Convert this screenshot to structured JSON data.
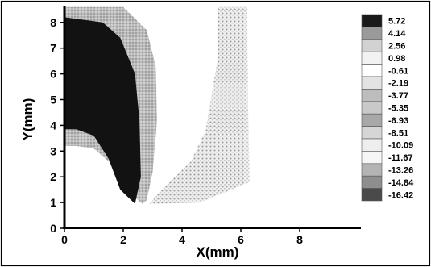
{
  "chart_data": {
    "type": "heatmap",
    "xlabel": "X(mm)",
    "ylabel": "Y(mm)",
    "xlim": [
      0,
      9.5
    ],
    "ylim": [
      0,
      8.6
    ],
    "x_ticks": [
      "0",
      "2",
      "4",
      "6",
      "8"
    ],
    "y_ticks": [
      "0",
      "1",
      "2",
      "3",
      "4",
      "5",
      "6",
      "7",
      "8"
    ],
    "legend": {
      "placement": "right",
      "levels": [
        "5.72",
        "4.14",
        "2.56",
        "0.98",
        "-0.61",
        "-2.19",
        "-3.77",
        "-5.35",
        "-6.93",
        "-8.51",
        "-10.09",
        "-11.67",
        "-13.26",
        "-14.84",
        "-16.42"
      ],
      "colors": [
        "#1a1a1a",
        "#9a9a9a",
        "#d2d2d2",
        "#f2f2f2",
        "#ffffff",
        "#e3e3e3",
        "#bdbdbd",
        "#c9c9c9",
        "#a8a8a8",
        "#d6d6d6",
        "#eeeeee",
        "#f6f6f6",
        "#b4b4b4",
        "#8e8e8e",
        "#4a4a4a"
      ]
    },
    "regions": [
      {
        "level": "4.14",
        "outline": [
          [
            0,
            8.6
          ],
          [
            2.0,
            8.6
          ],
          [
            2.8,
            7.7
          ],
          [
            3.1,
            6.3
          ],
          [
            3.15,
            4.2
          ],
          [
            3.0,
            2.2
          ],
          [
            2.8,
            1.1
          ],
          [
            2.65,
            0.95
          ],
          [
            2.1,
            1.5
          ],
          [
            1.7,
            2.4
          ],
          [
            1.0,
            3.1
          ],
          [
            0.4,
            3.2
          ],
          [
            0,
            3.2
          ]
        ]
      },
      {
        "level": "5.72",
        "outline": [
          [
            0,
            8.2
          ],
          [
            1.3,
            8.0
          ],
          [
            1.9,
            7.4
          ],
          [
            2.4,
            6.0
          ],
          [
            2.55,
            4.2
          ],
          [
            2.6,
            2.0
          ],
          [
            2.4,
            0.95
          ],
          [
            1.9,
            1.5
          ],
          [
            1.5,
            2.7
          ],
          [
            1.0,
            3.6
          ],
          [
            0.4,
            3.85
          ],
          [
            0,
            3.85
          ]
        ]
      },
      {
        "level": "-3.77",
        "outline": [
          [
            5.2,
            8.6
          ],
          [
            6.2,
            8.6
          ],
          [
            6.25,
            4.6
          ],
          [
            6.3,
            1.8
          ],
          [
            4.6,
            1.0
          ],
          [
            2.9,
            0.95
          ],
          [
            3.3,
            1.5
          ],
          [
            4.3,
            2.6
          ],
          [
            4.8,
            3.8
          ],
          [
            5.2,
            6.5
          ]
        ]
      }
    ]
  }
}
